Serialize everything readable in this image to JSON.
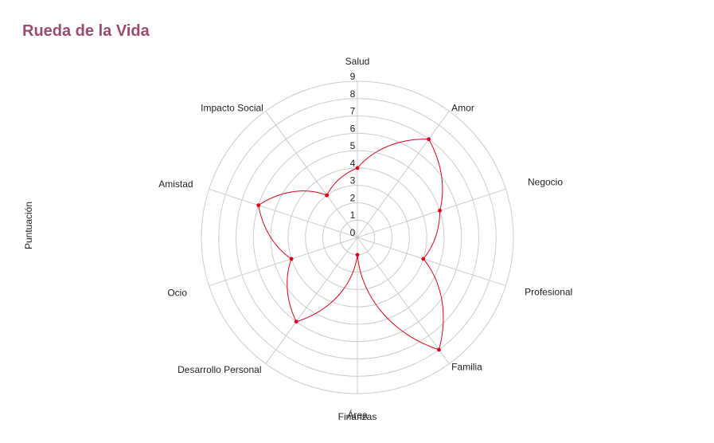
{
  "chart_data": {
    "type": "radar",
    "title": "Rueda de la Vida",
    "ylabel": "Puntuación",
    "xlabel": "Área",
    "categories": [
      "Salud",
      "Amor",
      "Negocio",
      "Profesional",
      "Familia",
      "Finanzas",
      "Desarrollo Personal",
      "Ocio",
      "Amistad",
      "Impacto Social"
    ],
    "rlim": [
      0,
      9
    ],
    "r_ticks": [
      "0",
      "1",
      "2",
      "3",
      "4",
      "5",
      "6",
      "7",
      "8",
      "9"
    ],
    "series": [
      {
        "color": "#e3001b",
        "values": [
          4,
          7,
          5,
          4,
          8,
          1,
          6,
          4,
          6,
          3
        ]
      }
    ],
    "grid": true,
    "grid_color": "#cccccc",
    "title_color": "#9c4a72"
  }
}
